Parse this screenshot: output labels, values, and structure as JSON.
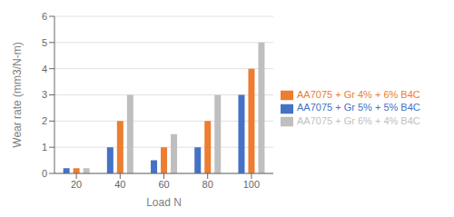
{
  "chart_data": {
    "type": "bar",
    "categories": [
      "20",
      "40",
      "60",
      "80",
      "100"
    ],
    "series": [
      {
        "name": "AA7075 + Gr 5% + 5% B4C",
        "color": "#4472C4",
        "values": [
          0.2,
          1.0,
          0.5,
          1.0,
          3.0
        ]
      },
      {
        "name": "AA7075 + Gr 4% + 6% B4C",
        "color": "#ED7D31",
        "values": [
          0.2,
          2.0,
          1.0,
          2.0,
          4.0
        ]
      },
      {
        "name": "AA7075 + Gr 6% + 4% B4C",
        "color": "#BFBFBF",
        "values": [
          0.2,
          3.0,
          1.5,
          3.0,
          5.0
        ]
      }
    ],
    "xlabel": "Load N",
    "ylabel": "Wear rate (mm3/N-m)",
    "ylim": [
      0,
      6
    ],
    "yticks": [
      0,
      1,
      2,
      3,
      4,
      5,
      6
    ],
    "grid": true,
    "legend": "right"
  }
}
